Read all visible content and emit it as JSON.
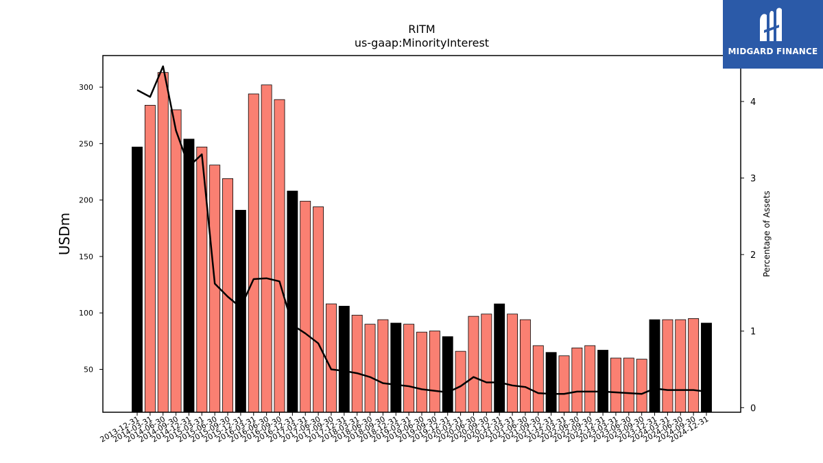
{
  "chart_data": {
    "type": "bar",
    "title": "RITM",
    "subtitle": "us-gaap:MinorityInterest",
    "ylabel": "USDm",
    "ylabel_right": "Percentage of Assets",
    "ylim": [
      12,
      328
    ],
    "ylim_right": [
      -0.06,
      4.6
    ],
    "yticks": [
      50,
      100,
      150,
      200,
      250,
      300
    ],
    "yticks_right": [
      0,
      1,
      2,
      3,
      4
    ],
    "grid": false,
    "colors": {
      "annual_bar": "#000000",
      "quarter_bar": "#fa8072",
      "line": "#000000"
    },
    "categories": [
      "2013-12-31",
      "2014-03-31",
      "2014-06-30",
      "2014-09-30",
      "2014-12-31",
      "2015-03-31",
      "2015-06-30",
      "2015-09-30",
      "2015-12-31",
      "2016-03-31",
      "2016-06-30",
      "2016-09-30",
      "2016-12-31",
      "2017-03-31",
      "2017-06-30",
      "2017-09-30",
      "2017-12-31",
      "2018-03-31",
      "2018-06-30",
      "2018-09-30",
      "2018-12-31",
      "2019-03-31",
      "2019-06-30",
      "2019-09-30",
      "2019-12-31",
      "2020-03-31",
      "2020-06-30",
      "2020-09-30",
      "2020-12-31",
      "2021-03-31",
      "2021-06-30",
      "2021-09-30",
      "2021-12-31",
      "2022-03-31",
      "2022-06-30",
      "2022-09-30",
      "2022-12-31",
      "2023-03-31",
      "2023-06-30",
      "2023-09-30",
      "2023-12-31",
      "2024-03-31",
      "2024-06-30",
      "2024-09-30",
      "2024-12-31"
    ],
    "series": [
      {
        "kind": "bar",
        "values": [
          247,
          284,
          313,
          280,
          254,
          247,
          231,
          219,
          191,
          294,
          302,
          289,
          208,
          199,
          194,
          108,
          106,
          98,
          90,
          94,
          91,
          90,
          83,
          84,
          79,
          66,
          97,
          99,
          108,
          99,
          94,
          71,
          65,
          62,
          69,
          71,
          67,
          60,
          60,
          59,
          94,
          94,
          94,
          95,
          91
        ],
        "annual": [
          true,
          false,
          false,
          false,
          true,
          false,
          false,
          false,
          true,
          false,
          false,
          false,
          true,
          false,
          false,
          false,
          true,
          false,
          false,
          false,
          true,
          false,
          false,
          false,
          true,
          false,
          false,
          false,
          true,
          false,
          false,
          false,
          true,
          false,
          false,
          false,
          true,
          false,
          false,
          false,
          true,
          false,
          false,
          false,
          true
        ]
      },
      {
        "kind": "line",
        "axis": "right",
        "values": [
          4.15,
          4.06,
          4.46,
          3.62,
          3.15,
          3.31,
          1.62,
          1.45,
          1.31,
          1.68,
          1.69,
          1.65,
          1.08,
          0.97,
          0.84,
          0.5,
          0.48,
          0.45,
          0.4,
          0.32,
          0.3,
          0.28,
          0.24,
          0.22,
          0.2,
          0.28,
          0.4,
          0.33,
          0.33,
          0.29,
          0.27,
          0.19,
          0.18,
          0.18,
          0.21,
          0.21,
          0.21,
          0.2,
          0.19,
          0.18,
          0.25,
          0.23,
          0.23,
          0.23,
          0.21
        ]
      }
    ]
  },
  "logo": {
    "text": "MIDGARD FINANCE",
    "icon": "midgard-logo-icon",
    "background": "#2b5aa8"
  }
}
